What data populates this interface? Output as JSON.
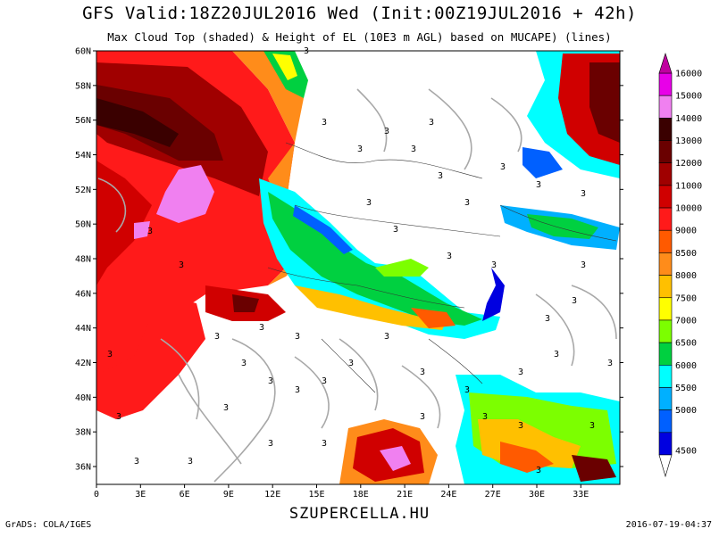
{
  "title": "GFS Valid:18Z20JUL2016 Wed (Init:00Z19JUL2016 + 42h)",
  "subtitle": "Max Cloud Top (shaded) & Height of EL (10E3 m AGL) based on MUCAPE) (lines)",
  "footer": {
    "site": "SZUPERCELLA.HU",
    "grads": "GrADS: COLA/IGES",
    "timestamp": "2016-07-19-04:37"
  },
  "axes": {
    "lat_labels": [
      "60N",
      "58N",
      "56N",
      "54N",
      "52N",
      "50N",
      "48N",
      "46N",
      "44N",
      "42N",
      "40N",
      "38N",
      "36N"
    ],
    "lon_labels": [
      "0",
      "3E",
      "6E",
      "9E",
      "12E",
      "15E",
      "18E",
      "21E",
      "24E",
      "27E",
      "30E",
      "33E"
    ],
    "lat_range": [
      35,
      60
    ],
    "lon_range": [
      0,
      35
    ]
  },
  "colorbar": {
    "labels": [
      "16000",
      "15000",
      "14000",
      "13000",
      "12000",
      "11000",
      "10000",
      "9000",
      "8500",
      "8000",
      "7500",
      "7000",
      "6500",
      "6000",
      "5500",
      "5000",
      "4500"
    ],
    "colors": [
      "#e800e8",
      "#f080f0",
      "#3a0000",
      "#6a0000",
      "#a00000",
      "#d00000",
      "#ff1a1a",
      "#ff5a00",
      "#ff8c1a",
      "#ffc000",
      "#ffff00",
      "#7cff00",
      "#00d040",
      "#00ffff",
      "#00b0ff",
      "#0060ff",
      "#0000e0"
    ]
  },
  "contour_label": "3"
}
